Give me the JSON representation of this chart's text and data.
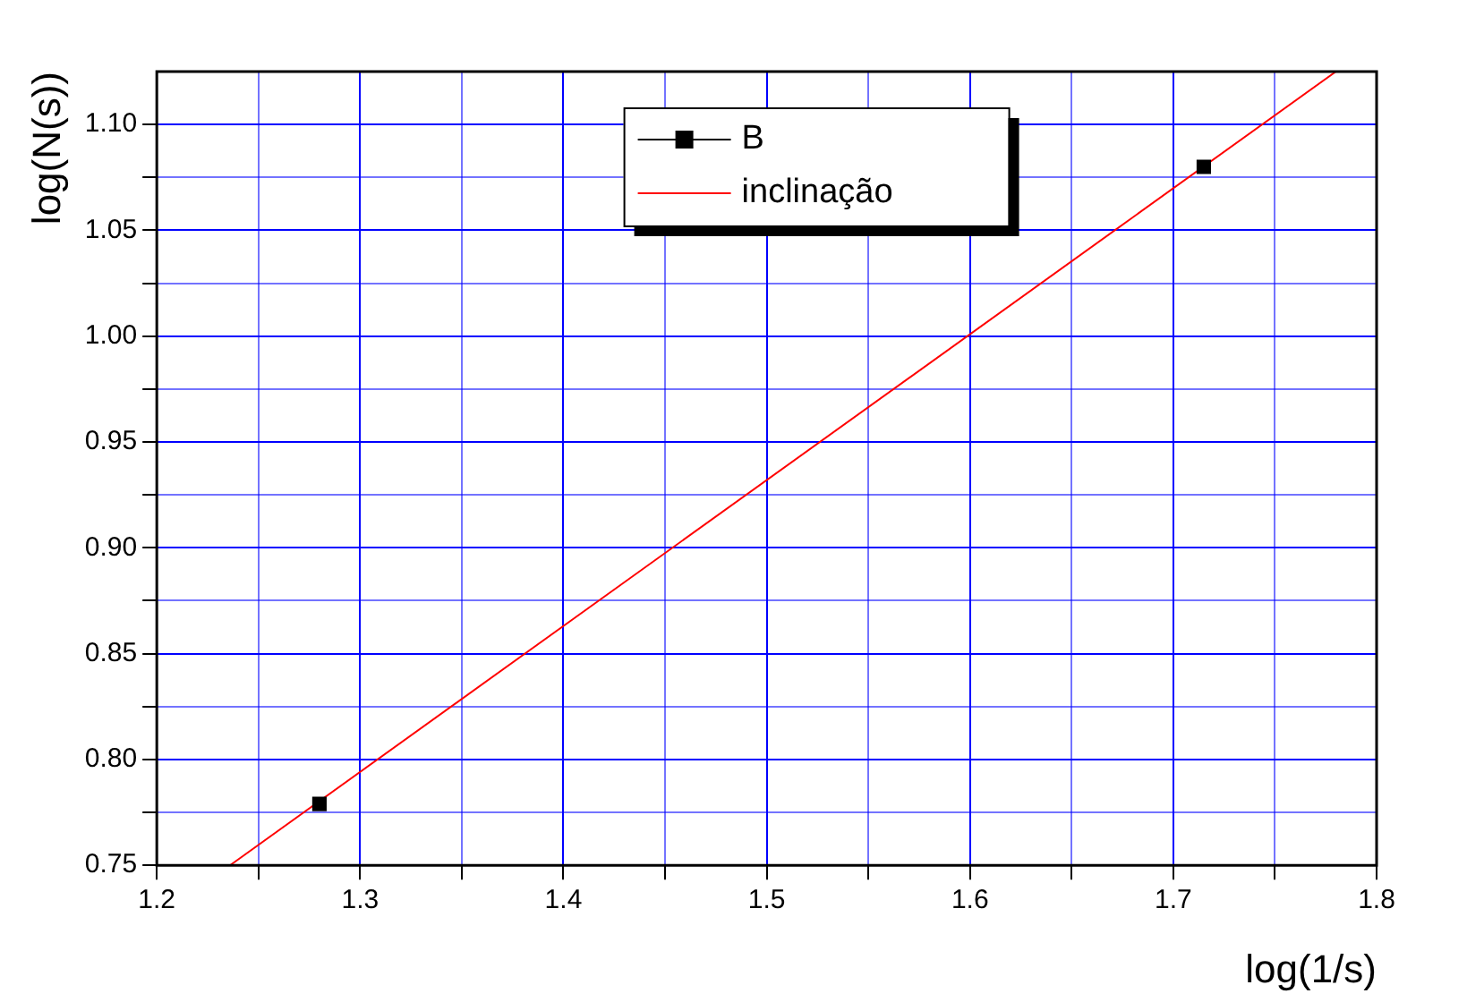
{
  "chart_data": {
    "type": "scatter",
    "xlabel": "log(1/s)",
    "ylabel": "log(N(s))",
    "xlim": [
      1.2,
      1.8
    ],
    "ylim": [
      0.75,
      1.125
    ],
    "xticks": [
      1.2,
      {
        "value": 1.25,
        "label": null
      },
      1.3,
      {
        "value": 1.35,
        "label": null
      },
      1.4,
      {
        "value": 1.45,
        "label": null
      },
      1.5,
      {
        "value": 1.55,
        "label": null
      },
      1.6,
      {
        "value": 1.65,
        "label": null
      },
      1.7,
      {
        "value": 1.75,
        "label": null
      },
      1.8
    ],
    "yticks": [
      {
        "value": 0.75,
        "label": "0.75"
      },
      {
        "value": 0.775,
        "label": null
      },
      {
        "value": 0.8,
        "label": "0.80"
      },
      {
        "value": 0.825,
        "label": null
      },
      {
        "value": 0.85,
        "label": "0.85"
      },
      {
        "value": 0.875,
        "label": null
      },
      {
        "value": 0.9,
        "label": "0.90"
      },
      {
        "value": 0.925,
        "label": null
      },
      {
        "value": 0.95,
        "label": "0.95"
      },
      {
        "value": 0.975,
        "label": null
      },
      {
        "value": 1.0,
        "label": "1.00"
      },
      {
        "value": 1.025,
        "label": null
      },
      {
        "value": 1.05,
        "label": "1.05"
      },
      {
        "value": 1.075,
        "label": null
      },
      {
        "value": 1.1,
        "label": "1.10"
      }
    ],
    "grid": true,
    "legend": "top",
    "series": [
      {
        "name": "B",
        "type": "scatter",
        "color": "#000000",
        "marker": "square",
        "x": [
          1.28,
          1.715
        ],
        "values": [
          0.779,
          1.08
        ]
      },
      {
        "name": "inclinação",
        "type": "line",
        "color": "#ff0000",
        "marker": "none",
        "x": [
          1.236,
          1.78
        ],
        "values": [
          0.75,
          1.125
        ],
        "line_style": "solid"
      }
    ]
  }
}
